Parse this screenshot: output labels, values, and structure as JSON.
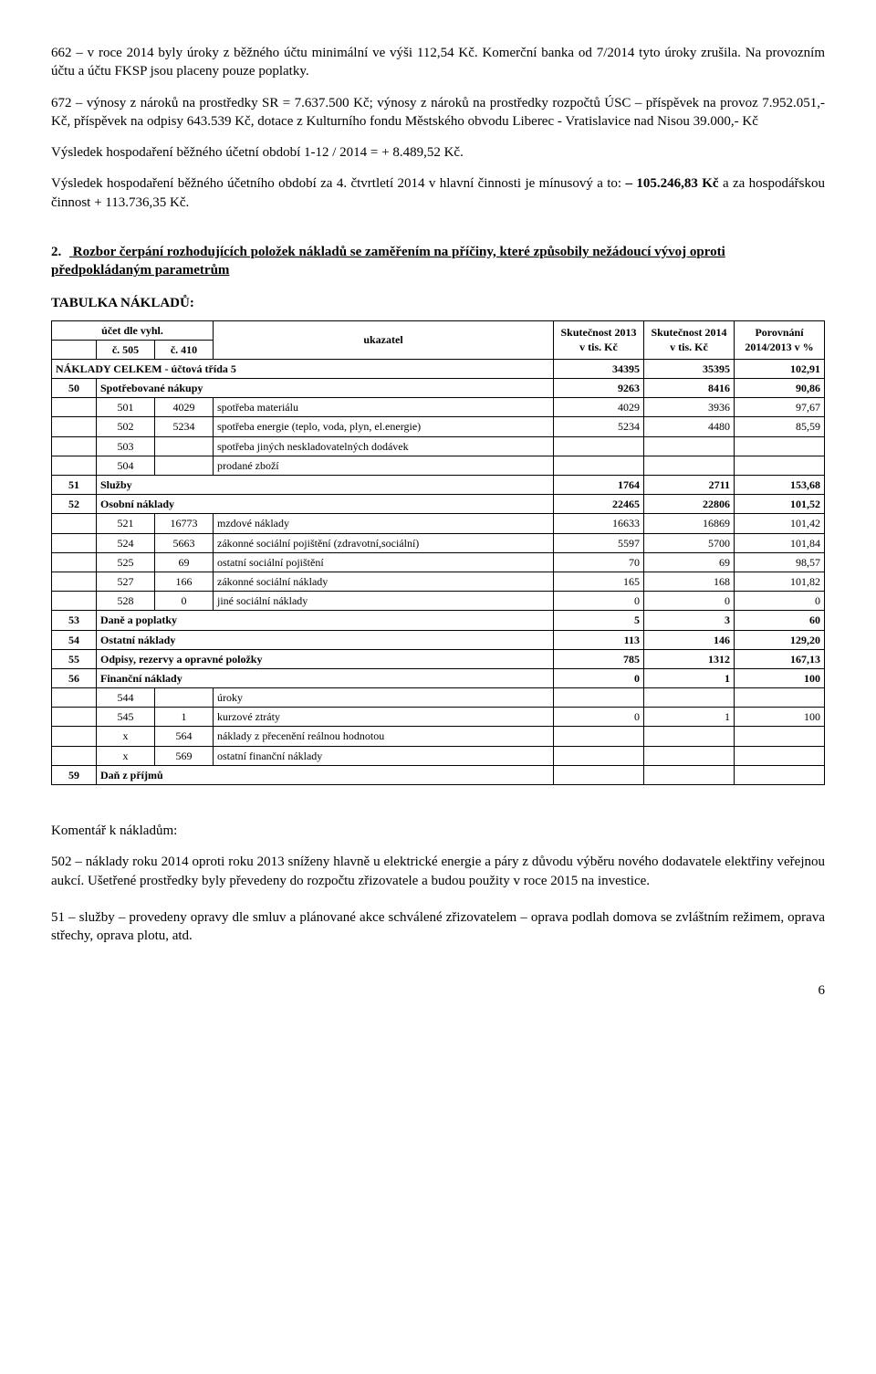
{
  "para1": "662 – v roce 2014 byly úroky z běžného účtu minimální ve výši 112,54 Kč. Komerční banka od 7/2014 tyto úroky zrušila. Na provozním účtu a účtu FKSP jsou placeny pouze poplatky.",
  "para2": "672 – výnosy z nároků na prostředky SR = 7.637.500 Kč; výnosy z nároků na prostředky rozpočtů ÚSC – příspěvek na provoz 7.952.051,- Kč, příspěvek na odpisy 643.539 Kč, dotace z Kulturního fondu Městského obvodu Liberec -  Vratislavice nad Nisou 39.000,- Kč",
  "para3a": "Výsledek hospodaření běžného účetní období 1-12 / 2014 =  + 8.489,52 Kč.",
  "para3b_1": "Výsledek hospodaření běžného účetního období za 4. čtvrtletí 2014 v hlavní činnosti je mínusový a to: ",
  "para3b_bold": "– 105.246,83 Kč",
  "para3b_2": " a za hospodářskou činnost + 113.736,35 Kč.",
  "section2_num": "2.",
  "section2_title": "Rozbor čerpání rozhodujících položek nákladů se zaměřením na příčiny, které způsobily nežádoucí vývoj oproti předpokládaným parametrům",
  "table_label": "TABULKA NÁKLADŮ:",
  "head_acct": "účet dle vyhl.",
  "head_c505": "č. 505",
  "head_c410": "č. 410",
  "head_ukazatel": "ukazatel",
  "head_s2013": "Skutečnost 2013 v tis. Kč",
  "head_s2014": "Skutečnost 2014 v tis. Kč",
  "head_porov": "Porovnání 2014/2013 v %",
  "rows": [
    {
      "type": "total",
      "c1": "",
      "c2": "",
      "desc": "NÁKLADY CELKEM - účtová třída 5",
      "v1": "34395",
      "v2": "35395",
      "v3": "102,91"
    },
    {
      "type": "group",
      "c1": "50",
      "c2": "",
      "desc": "Spotřebované nákupy",
      "v1": "9263",
      "v2": "8416",
      "v3": "90,86"
    },
    {
      "type": "sub",
      "c1": "",
      "c2": "501",
      "c3": "4029",
      "desc": "spotřeba materiálu",
      "v1": "4029",
      "v2": "3936",
      "v3": "97,67"
    },
    {
      "type": "sub",
      "c1": "",
      "c2": "502",
      "c3": "5234",
      "desc": "spotřeba energie (teplo, voda, plyn, el.energie)",
      "v1": "5234",
      "v2": "4480",
      "v3": "85,59"
    },
    {
      "type": "sub",
      "c1": "",
      "c2": "503",
      "c3": "",
      "desc": "spotřeba jiných neskladovatelných dodávek",
      "v1": "",
      "v2": "",
      "v3": ""
    },
    {
      "type": "sub",
      "c1": "",
      "c2": "504",
      "c3": "",
      "desc": "prodané zboží",
      "v1": "",
      "v2": "",
      "v3": ""
    },
    {
      "type": "group",
      "c1": "51",
      "c2": "",
      "desc": "Služby",
      "v1": "1764",
      "v2": "2711",
      "v3": "153,68"
    },
    {
      "type": "group",
      "c1": "52",
      "c2": "",
      "desc": "Osobní náklady",
      "v1": "22465",
      "v2": "22806",
      "v3": "101,52"
    },
    {
      "type": "sub",
      "c1": "",
      "c2": "521",
      "c3": "16773",
      "desc": "mzdové náklady",
      "v1": "16633",
      "v2": "16869",
      "v3": "101,42"
    },
    {
      "type": "sub",
      "c1": "",
      "c2": "524",
      "c3": "5663",
      "desc": "zákonné sociální pojištění (zdravotní,sociální)",
      "v1": "5597",
      "v2": "5700",
      "v3": "101,84"
    },
    {
      "type": "sub",
      "c1": "",
      "c2": "525",
      "c3": "69",
      "desc": "ostatní sociální pojištění",
      "v1": "70",
      "v2": "69",
      "v3": "98,57"
    },
    {
      "type": "sub",
      "c1": "",
      "c2": "527",
      "c3": "166",
      "desc": "zákonné sociální náklady",
      "v1": "165",
      "v2": "168",
      "v3": "101,82"
    },
    {
      "type": "sub",
      "c1": "",
      "c2": "528",
      "c3": "0",
      "desc": "jiné sociální náklady",
      "v1": "0",
      "v2": "0",
      "v3": "0"
    },
    {
      "type": "group",
      "c1": "53",
      "c2": "",
      "desc": "Daně a poplatky",
      "v1": "5",
      "v2": "3",
      "v3": "60"
    },
    {
      "type": "group",
      "c1": "54",
      "c2": "",
      "desc": "Ostatní náklady",
      "v1": "113",
      "v2": "146",
      "v3": "129,20"
    },
    {
      "type": "group",
      "c1": "55",
      "c2": "",
      "desc": "Odpisy, rezervy a opravné položky",
      "v1": "785",
      "v2": "1312",
      "v3": "167,13"
    },
    {
      "type": "group",
      "c1": "56",
      "c2": "",
      "desc": "Finanční náklady",
      "v1": "0",
      "v2": "1",
      "v3": "100"
    },
    {
      "type": "sub",
      "c1": "",
      "c2": "544",
      "c3": "",
      "desc": "úroky",
      "v1": "",
      "v2": "",
      "v3": ""
    },
    {
      "type": "sub",
      "c1": "",
      "c2": "545",
      "c3": "1",
      "desc": "kurzové ztráty",
      "v1": "0",
      "v2": "1",
      "v3": "100"
    },
    {
      "type": "sub",
      "c1": "",
      "c2": "x",
      "c3": "564",
      "desc": "náklady z přecenění reálnou hodnotou",
      "v1": "",
      "v2": "",
      "v3": ""
    },
    {
      "type": "sub",
      "c1": "",
      "c2": "x",
      "c3": "569",
      "desc": "ostatní finanční náklady",
      "v1": "",
      "v2": "",
      "v3": ""
    },
    {
      "type": "group",
      "c1": "59",
      "c2": "",
      "desc": "Daň z příjmů",
      "v1": "",
      "v2": "",
      "v3": ""
    }
  ],
  "comment_heading": "Komentář k nákladům:",
  "comment1": "502 – náklady roku 2014 oproti roku 2013 sníženy hlavně u elektrické energie a páry z důvodu výběru nového dodavatele elektřiny veřejnou aukcí. Ušetřené prostředky byly převedeny do rozpočtu zřizovatele a budou použity v roce 2015 na investice.",
  "comment2": "51 – služby – provedeny opravy dle smluv a plánované akce schválené zřizovatelem – oprava podlah domova se zvláštním režimem, oprava střechy, oprava plotu, atd.",
  "page_num": "6"
}
